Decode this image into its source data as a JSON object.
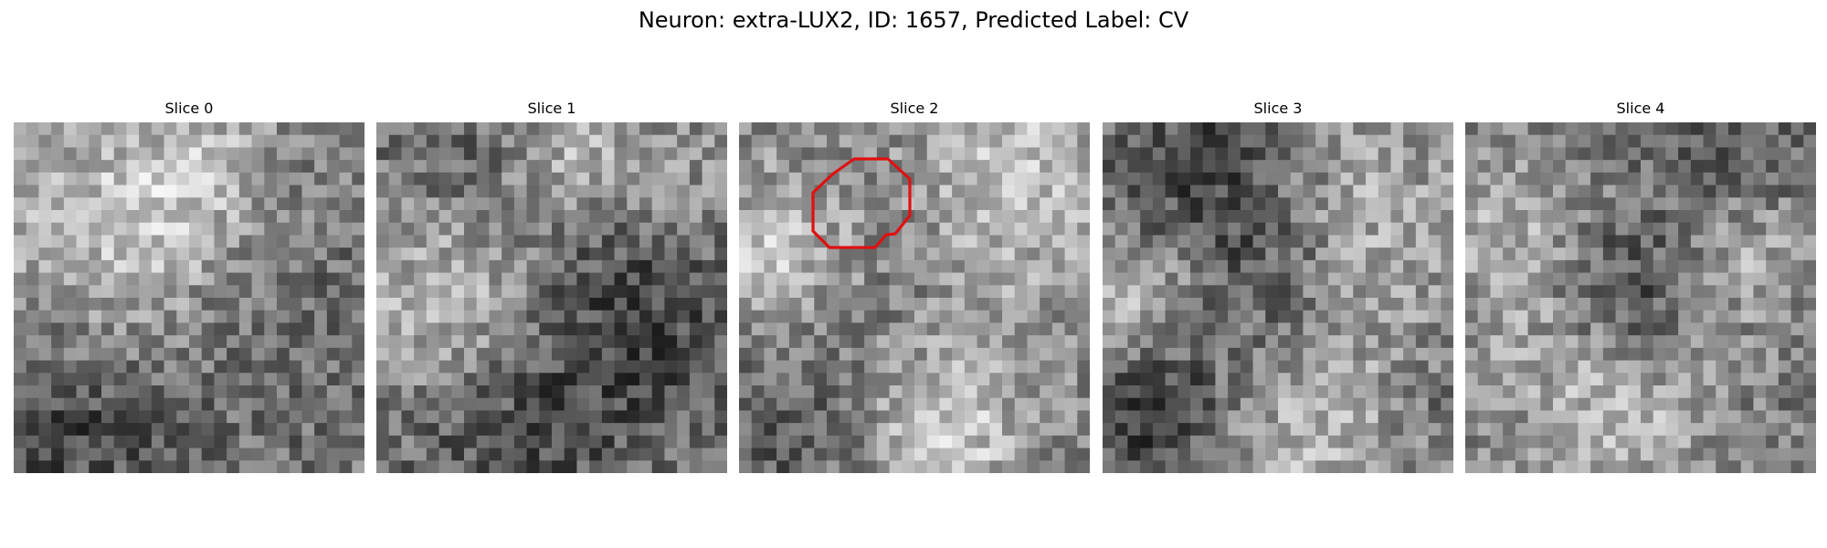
{
  "figure": {
    "title": "Neuron: extra-LUX2, ID: 1657, Predicted Label: CV"
  },
  "slices": [
    {
      "title": "Slice 0"
    },
    {
      "title": "Slice 1"
    },
    {
      "title": "Slice 2",
      "roi_outline": true
    },
    {
      "title": "Slice 3"
    },
    {
      "title": "Slice 4"
    }
  ],
  "colors": {
    "background": "#ffffff",
    "roi_outline": "#e01010",
    "colormap": "gray"
  }
}
